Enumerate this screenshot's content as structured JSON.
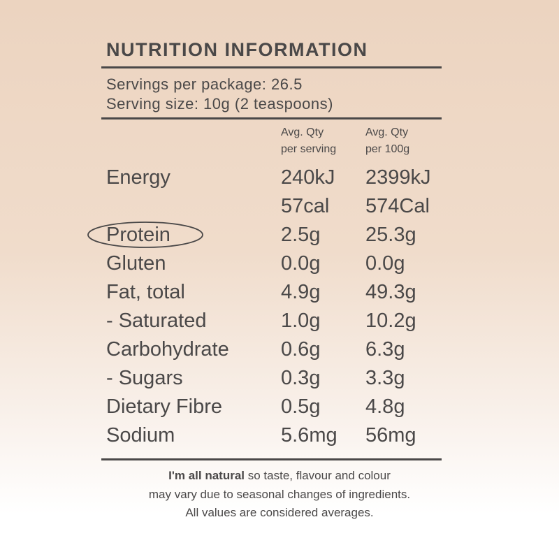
{
  "header": {
    "title": "NUTRITION INFORMATION"
  },
  "servings": {
    "per_package": "Servings per package: 26.5",
    "size": "Serving size: 10g (2 teaspoons)"
  },
  "columns": [
    {
      "line1": "Avg. Qty",
      "line2": "per serving"
    },
    {
      "line1": "Avg. Qty",
      "line2": "per 100g"
    }
  ],
  "rows": [
    {
      "label": "Energy",
      "per_serving": [
        "240kJ",
        "57cal"
      ],
      "per_100g": [
        "2399kJ",
        "574Cal"
      ]
    },
    {
      "label": "Protein",
      "per_serving": [
        "2.5g"
      ],
      "per_100g": [
        "25.3g"
      ]
    },
    {
      "label": "Gluten",
      "per_serving": [
        "0.0g"
      ],
      "per_100g": [
        "0.0g"
      ]
    },
    {
      "label": "Fat, total",
      "per_serving": [
        "4.9g"
      ],
      "per_100g": [
        "49.3g"
      ]
    },
    {
      "label": "- Saturated",
      "per_serving": [
        "1.0g"
      ],
      "per_100g": [
        "10.2g"
      ]
    },
    {
      "label": "Carbohydrate",
      "per_serving": [
        "0.6g"
      ],
      "per_100g": [
        "6.3g"
      ]
    },
    {
      "label": "- Sugars",
      "per_serving": [
        "0.3g"
      ],
      "per_100g": [
        "3.3g"
      ]
    },
    {
      "label": "Dietary Fibre",
      "per_serving": [
        "0.5g"
      ],
      "per_100g": [
        "4.8g"
      ]
    },
    {
      "label": "Sodium",
      "per_serving": [
        "5.6mg"
      ],
      "per_100g": [
        "56mg"
      ]
    }
  ],
  "footer": {
    "bold": "I'm all natural",
    "line1": "so taste, flavour and colour",
    "line2": "may vary due to seasonal changes of ingredients.",
    "line3": "All values are considered averages."
  }
}
